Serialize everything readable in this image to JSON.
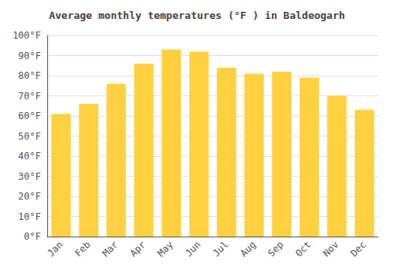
{
  "chart_data": {
    "type": "bar",
    "title": "Average monthly temperatures (°F ) in Baldeogarh",
    "categories": [
      "Jan",
      "Feb",
      "Mar",
      "Apr",
      "May",
      "Jun",
      "Jul",
      "Aug",
      "Sep",
      "Oct",
      "Nov",
      "Dec"
    ],
    "values": [
      61,
      66,
      76,
      86,
      93,
      92,
      84,
      81,
      82,
      79,
      70,
      63
    ],
    "color": "#FFD040",
    "ylim": [
      0,
      100
    ],
    "yticks": [
      {
        "value": 0,
        "label": "0°F"
      },
      {
        "value": 10,
        "label": "10°F"
      },
      {
        "value": 20,
        "label": "20°F"
      },
      {
        "value": 30,
        "label": "30°F"
      },
      {
        "value": 40,
        "label": "40°F"
      },
      {
        "value": 50,
        "label": "50°F"
      },
      {
        "value": 60,
        "label": "60°F"
      },
      {
        "value": 70,
        "label": "70°F"
      },
      {
        "value": 80,
        "label": "80°F"
      },
      {
        "value": 90,
        "label": "90°F"
      },
      {
        "value": 100,
        "label": "100°F"
      }
    ],
    "grid": true
  }
}
